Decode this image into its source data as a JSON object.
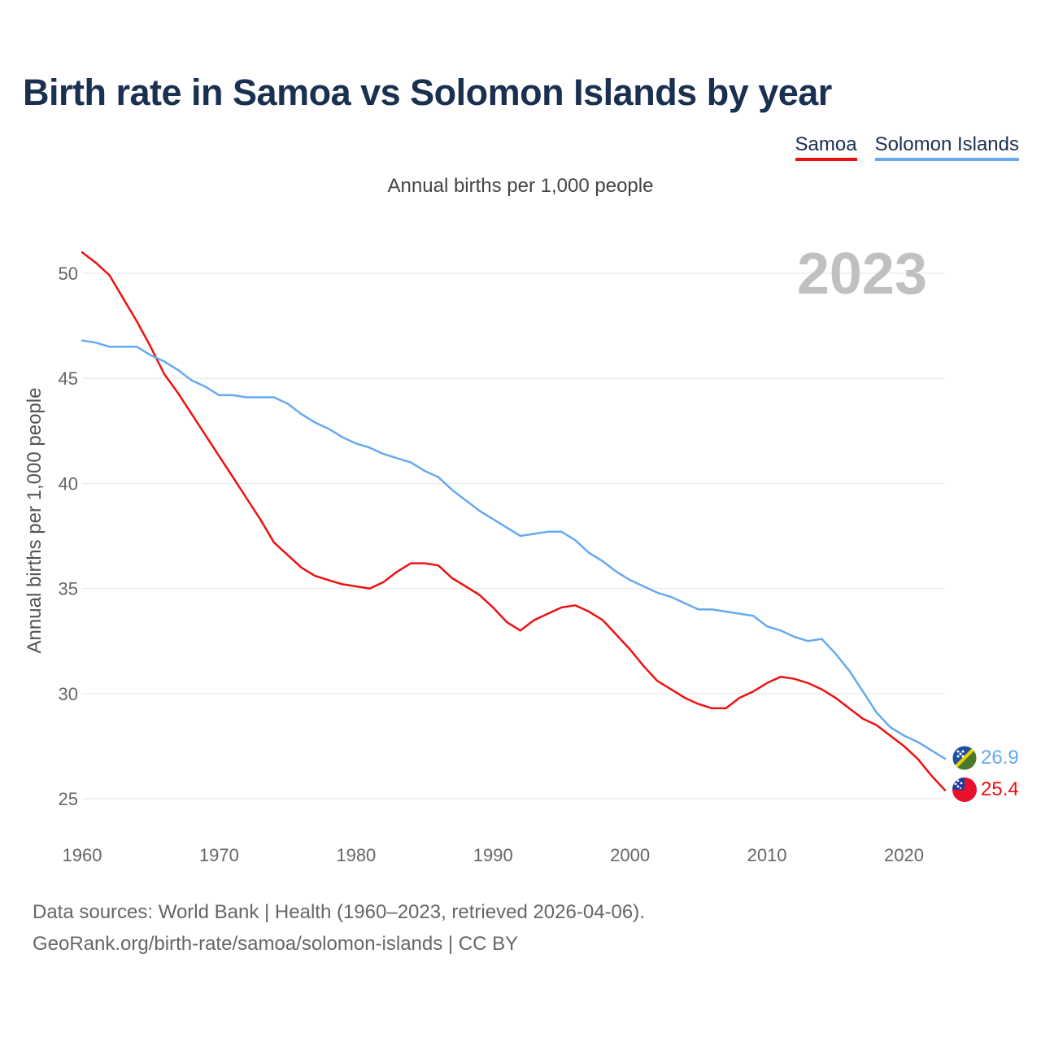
{
  "title": "Birth rate in Samoa vs Solomon Islands by year",
  "subtitle": "Annual births per 1,000 people",
  "legend": [
    {
      "label": "Samoa",
      "color": "#ee1111"
    },
    {
      "label": "Solomon Islands",
      "color": "#66aaee"
    }
  ],
  "source": {
    "line1": "Data sources: World Bank | Health (1960–2023, retrieved 2026-04-06).",
    "line2": "GeoRank.org/birth-rate/samoa/solomon-islands | CC BY"
  },
  "chart_data": {
    "type": "line",
    "title": "Birth rate in Samoa vs Solomon Islands by year",
    "ylabel": "Annual births per 1,000 people",
    "xlabel": "",
    "xlim": [
      1960,
      2023
    ],
    "ylim": [
      24,
      52
    ],
    "x_ticks": [
      1960,
      1970,
      1980,
      1990,
      2000,
      2010,
      2020
    ],
    "y_ticks": [
      25,
      30,
      35,
      40,
      45,
      50
    ],
    "year_label": "2023",
    "x": [
      1960,
      1961,
      1962,
      1963,
      1964,
      1965,
      1966,
      1967,
      1968,
      1969,
      1970,
      1971,
      1972,
      1973,
      1974,
      1975,
      1976,
      1977,
      1978,
      1979,
      1980,
      1981,
      1982,
      1983,
      1984,
      1985,
      1986,
      1987,
      1988,
      1989,
      1990,
      1991,
      1992,
      1993,
      1994,
      1995,
      1996,
      1997,
      1998,
      1999,
      2000,
      2001,
      2002,
      2003,
      2004,
      2005,
      2006,
      2007,
      2008,
      2009,
      2010,
      2011,
      2012,
      2013,
      2014,
      2015,
      2016,
      2017,
      2018,
      2019,
      2020,
      2021,
      2022,
      2023
    ],
    "series": [
      {
        "name": "Samoa",
        "color": "#ee1111",
        "end_label": "25.4",
        "values": [
          51.0,
          50.5,
          49.9,
          48.8,
          47.7,
          46.5,
          45.2,
          44.3,
          43.3,
          42.3,
          41.3,
          40.3,
          39.3,
          38.3,
          37.2,
          36.6,
          36.0,
          35.6,
          35.4,
          35.2,
          35.1,
          35.0,
          35.3,
          35.8,
          36.2,
          36.2,
          36.1,
          35.5,
          35.1,
          34.7,
          34.1,
          33.4,
          33.0,
          33.5,
          33.8,
          34.1,
          34.2,
          33.9,
          33.5,
          32.8,
          32.1,
          31.3,
          30.6,
          30.2,
          29.8,
          29.5,
          29.3,
          29.3,
          29.8,
          30.1,
          30.5,
          30.8,
          30.7,
          30.5,
          30.2,
          29.8,
          29.3,
          28.8,
          28.5,
          28.0,
          27.5,
          26.9,
          26.1,
          25.4
        ]
      },
      {
        "name": "Solomon Islands",
        "color": "#66aaee",
        "end_label": "26.9",
        "values": [
          46.8,
          46.7,
          46.5,
          46.5,
          46.5,
          46.1,
          45.8,
          45.4,
          44.9,
          44.6,
          44.2,
          44.2,
          44.1,
          44.1,
          44.1,
          43.8,
          43.3,
          42.9,
          42.6,
          42.2,
          41.9,
          41.7,
          41.4,
          41.2,
          41.0,
          40.6,
          40.3,
          39.7,
          39.2,
          38.7,
          38.3,
          37.9,
          37.5,
          37.6,
          37.7,
          37.7,
          37.3,
          36.7,
          36.3,
          35.8,
          35.4,
          35.1,
          34.8,
          34.6,
          34.3,
          34.0,
          34.0,
          33.9,
          33.8,
          33.7,
          33.2,
          33.0,
          32.7,
          32.5,
          32.6,
          31.9,
          31.1,
          30.1,
          29.1,
          28.4,
          28.0,
          27.7,
          27.3,
          26.9
        ]
      }
    ]
  }
}
